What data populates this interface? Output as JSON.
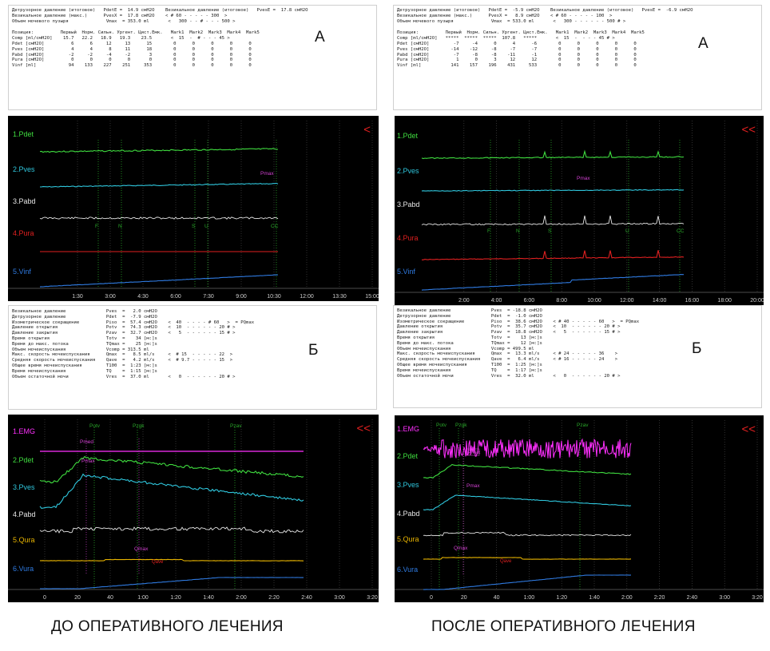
{
  "captions": {
    "before": "ДО ОПЕРАТИВНОГО ЛЕЧЕНИЯ",
    "after": "ПОСЛЕ ОПЕРАТИВНОГО ЛЕЧЕНИЯ"
  },
  "letters": {
    "a": "А",
    "b": "Б"
  },
  "colors": {
    "pdet": "#3fdc3f",
    "pves": "#2fc6dc",
    "pabd": "#e6e6e6",
    "pura": "#e02020",
    "vinf": "#2f7ae0",
    "emg": "#ff30ff",
    "qura": "#e8b400",
    "vura": "#2f7ae0",
    "marker": "#2aa82a",
    "magenta": "#d040d0",
    "arrow": "#e02020",
    "bg": "#000000"
  },
  "panels": {
    "before_a": {
      "header": [
        "Детрузорное давление (итоговое)   PdetE =  14.9 смH2O    Везикальное давление (итоговое)   PvesE =  17.8 смH2O",
        "Везикальное давление (макс.)      PvesX =  17.8 смH2O    < # 60 - - - - - 300  >",
        "Объем мочевого пузыря              Vmax  = 353.0 ml       <   300 - - # - - - 500 >"
      ],
      "table_header": "Позиция:          Первый  Норм. Сильн. Ургент. Цист.Емк.   Mark1  Mark2  Mark3  Mark4  Mark5",
      "table_rows": [
        "Comp [ml/смH2O]    15.7   22.2   18.9   19.3    23.5       <  15  -  # - - - 45 >",
        "Pdet [смH2O]          6      6     12     13      15        0      0      0      0      0",
        "Pves [смH2O]          4      4      8     11      18        0      0      0      0      0",
        "Pabd [смH2O]         -2     -2     -4     -2       3        0      0      0      0      0",
        "Pura [смH2O]          0      0      0      0       0        0      0      0      0      0",
        "Vinf [ml]            94    133    227    251     353        0      0      0      0      0"
      ]
    },
    "after_a": {
      "header": [
        "Детрузорное давление (итоговое)   PdetE =  -5.9 смH2O    Везикальное давление (итоговое)   PvesE =  -6.9 смH2O",
        "Везикальное давление (макс.)      PvesX =   8.9 смH2O    < # 60 - - - - - 100  >",
        "Объем мочевого пузыря              Vmax  = 533.0 ml       <   300 - - - - - - 500 # >"
      ],
      "table_header": "Позиция:          Первый  Норм. Сильн. Ургент. Цист.Емк.   Mark1  Mark2  Mark3  Mark4  Mark5",
      "table_rows": [
        "Comp [ml/смH2O]   *****  *****  *****  107.8   *****       <  15  -  - - - 45 # >",
        "Pdet [смH2O]         -7     -4      0      4      -6        0      0      0      0      0",
        "Pves [смH2O]        -14    -12     -8     -7      -7        0      0      0      0      0",
        "Pabd [смH2O]         -7     -8     -8    -11      -1        0      0      0      0      0",
        "Pura [смH2O]          1      0      3     12      12        0      0      0      0      0",
        "Vinf [ml]           141    157    196    431     533        0      0      0      0      0"
      ]
    },
    "before_b": {
      "rows": [
        "Везикальное давление               Pves  =   2.0 смH2O",
        "Детрузорное давление               Pdet  =  -7.9 смH2O",
        "Изометрическое сокращение          Piso  =  57.4 смH2O    <  40  - - - - # 60   >  = PQmax",
        "Давление открытия                  Potv  =  74.3 смH2O    <  10  - - - - - - 20 # >",
        "Давление закрытия                  Pzav  =  32.7 смH2O    <   5  - - - - - - 15 # >",
        "Время открытия                     Totv  =    34 [м:]s",
        "Время до макс. потока              TQmax =    25 [м:]s",
        "Объем мочеиспускания               Vcomp = 313.5 ml",
        "Макс. скорость мочеиспускания      Qmax  =   8.5 ml/s     <  # 15  - - - - - 22  >",
        "Средняя скорость мочеиспускания    Qave  =   4.2 ml/s     <  # 9.7 - - - - - 15  >",
        "Общее время мочеиспускания         T100  =  1:23 [м:]s",
        "Время мочеиспускания               TQ    =  1:15 [м:]s",
        "Объем остаточной мочи              Vres  =  37.0 ml       <   0  - - - - - - 20 # >"
      ]
    },
    "after_b": {
      "rows": [
        "Везикальное давление               Pves  = -18.8 смH2O",
        "Детрузорное давление               Pdet  =  -1.0 смH2O",
        "Изометрическое сокращение          Piso  =  38.6 смH2O    < # 40 - - - - - 60   >  = PQmax",
        "Давление открытия                  Potv  =  35.7 смH2O    <  10  - - - - - - 20 # >",
        "Давление закрытия                  Pzav  =  18.8 смH2O    <   5  - - - - - - 15 # >",
        "Время открытия                     Totv  =    13 [м:]s",
        "Время до макс. потока              TQmax =    12 [м:]s",
        "Объем мочеиспускания               Vcomp = 499.5 ml",
        "Макс. скорость мочеиспускания      Qmax  =  13.3 ml/s     < # 24 - - - - - 36    >",
        "Средняя скорость мочеиспускания    Qave  =   6.4 ml/s     < # 16 - - - - - 24    >",
        "Общее время мочеиспускания         T100  =  1:25 [м:]s",
        "Время мочеиспускания               TQ    =  1:17 [м:]s",
        "Объем остаточной мочи              Vres  =  32.0 ml       <   0  - - - - - - 20 # >"
      ]
    }
  },
  "chart_data": [
    {
      "id": "before_fill",
      "type": "line",
      "arrow": "<",
      "x_ticks": [
        "1:30",
        "3:00",
        "4:30",
        "6:00",
        "7:30",
        "9:00",
        "10:30",
        "12:00",
        "13:30",
        "15:00"
      ],
      "channels": [
        {
          "name": "1.Pdet",
          "color_key": "pdet"
        },
        {
          "name": "2.Pves",
          "color_key": "pves"
        },
        {
          "name": "3.Pabd",
          "color_key": "pabd"
        },
        {
          "name": "4.Pura",
          "color_key": "pura"
        },
        {
          "name": "5.Vinf",
          "color_key": "vinf"
        }
      ],
      "markers": [
        "F",
        "N",
        "S",
        "U",
        "CC"
      ],
      "annotations": [
        "Pmax"
      ]
    },
    {
      "id": "after_fill",
      "type": "line",
      "arrow": "<<",
      "x_ticks": [
        "2:00",
        "4:00",
        "6:00",
        "8:00",
        "10:00",
        "12:00",
        "14:00",
        "16:00",
        "18:00",
        "20:00"
      ],
      "channels": [
        {
          "name": "1.Pdet",
          "color_key": "pdet"
        },
        {
          "name": "2.Pves",
          "color_key": "pves"
        },
        {
          "name": "3.Pabd",
          "color_key": "pabd"
        },
        {
          "name": "4.Pura",
          "color_key": "pura"
        },
        {
          "name": "5.Vinf",
          "color_key": "vinf"
        }
      ],
      "markers": [
        "F",
        "N",
        "S",
        "U",
        "CC"
      ],
      "annotations": [
        "Pmax"
      ]
    },
    {
      "id": "before_void",
      "type": "line",
      "arrow": "<<",
      "x_ticks": [
        "0",
        "20",
        "40",
        "1:00",
        "1:20",
        "1:40",
        "2:00",
        "2:20",
        "2:40",
        "3:00",
        "3:20"
      ],
      "channels": [
        {
          "name": "1.EMG",
          "color_key": "emg"
        },
        {
          "name": "2.Pdet",
          "color_key": "pdet"
        },
        {
          "name": "3.Pves",
          "color_key": "pves"
        },
        {
          "name": "4.Pabd",
          "color_key": "pabd"
        },
        {
          "name": "5.Qura",
          "color_key": "qura"
        },
        {
          "name": "6.Vura",
          "color_key": "vura"
        }
      ],
      "markers": [
        "Potv",
        "Pzgk",
        "Pzav"
      ],
      "annotations": [
        "Pmed",
        "Pmax",
        "Qmax",
        "Qave"
      ]
    },
    {
      "id": "after_void",
      "type": "line",
      "arrow": "<<",
      "x_ticks": [
        "0",
        "20",
        "40",
        "1:00",
        "1:20",
        "1:40",
        "2:00",
        "2:20",
        "2:40",
        "3:00",
        "3:20"
      ],
      "channels": [
        {
          "name": "1.EMG",
          "color_key": "emg"
        },
        {
          "name": "2.Pdet",
          "color_key": "pdet"
        },
        {
          "name": "3.Pves",
          "color_key": "pves"
        },
        {
          "name": "4.Pabd",
          "color_key": "pabd"
        },
        {
          "name": "5.Qura",
          "color_key": "qura"
        },
        {
          "name": "6.Vura",
          "color_key": "vura"
        }
      ],
      "markers": [
        "Potv",
        "Pzgk",
        "Pzav"
      ],
      "annotations": [
        "Pmax",
        "Pmax",
        "Qmax",
        "Qave"
      ]
    }
  ]
}
